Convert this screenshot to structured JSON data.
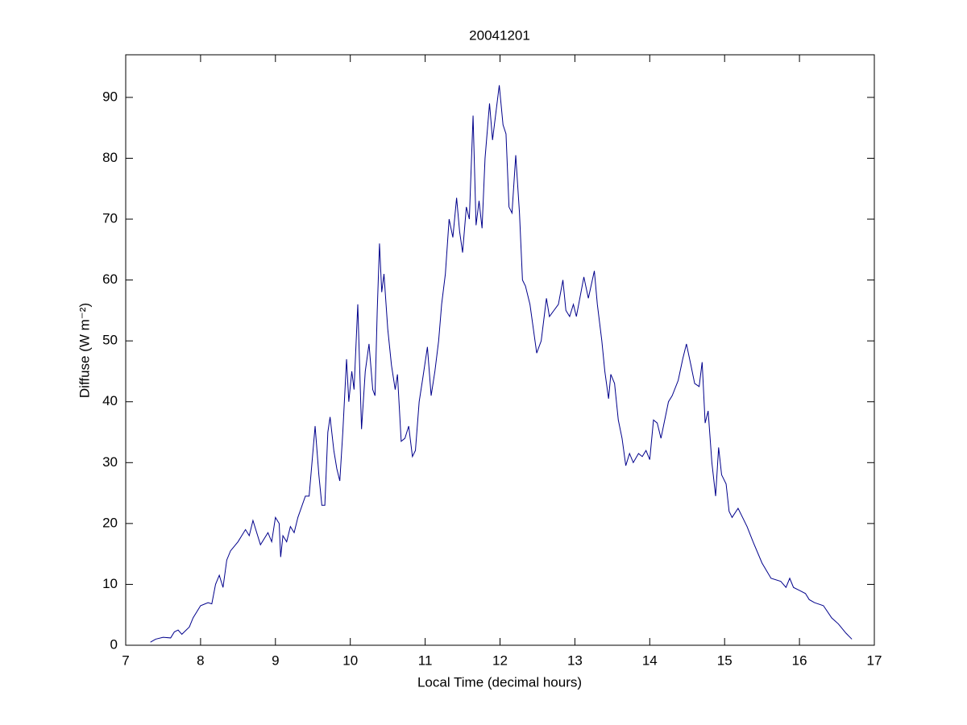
{
  "chart_data": {
    "type": "line",
    "title": "20041201",
    "xlabel": "Local Time (decimal hours)",
    "ylabel": "Diffuse (W m⁻²)",
    "xlim": [
      7,
      17
    ],
    "xticks": [
      7,
      8,
      9,
      10,
      11,
      12,
      13,
      14,
      15,
      16,
      17
    ],
    "ylim": [
      0,
      97
    ],
    "yticks": [
      0,
      10,
      20,
      30,
      40,
      50,
      60,
      70,
      80,
      90
    ],
    "grid": false,
    "series": [
      {
        "name": "Diffuse",
        "color": "#00008b",
        "x": [
          7.33,
          7.4,
          7.5,
          7.6,
          7.65,
          7.7,
          7.75,
          7.85,
          7.9,
          8.0,
          8.1,
          8.15,
          8.2,
          8.25,
          8.3,
          8.35,
          8.4,
          8.5,
          8.6,
          8.65,
          8.7,
          8.8,
          8.9,
          8.95,
          9.0,
          9.05,
          9.07,
          9.1,
          9.15,
          9.2,
          9.25,
          9.3,
          9.4,
          9.45,
          9.53,
          9.58,
          9.62,
          9.66,
          9.7,
          9.73,
          9.78,
          9.82,
          9.86,
          9.9,
          9.95,
          9.98,
          10.02,
          10.05,
          10.1,
          10.15,
          10.2,
          10.25,
          10.3,
          10.33,
          10.36,
          10.39,
          10.42,
          10.45,
          10.5,
          10.55,
          10.6,
          10.63,
          10.68,
          10.73,
          10.78,
          10.83,
          10.87,
          10.92,
          10.97,
          11.03,
          11.08,
          11.13,
          11.18,
          11.22,
          11.27,
          11.32,
          11.37,
          11.42,
          11.46,
          11.5,
          11.55,
          11.59,
          11.64,
          11.68,
          11.72,
          11.76,
          11.8,
          11.86,
          11.9,
          11.99,
          12.04,
          12.08,
          12.12,
          12.16,
          12.21,
          12.26,
          12.3,
          12.34,
          12.4,
          12.49,
          12.55,
          12.62,
          12.66,
          12.72,
          12.78,
          12.84,
          12.88,
          12.93,
          12.98,
          13.02,
          13.12,
          13.18,
          13.26,
          13.3,
          13.36,
          13.4,
          13.45,
          13.48,
          13.53,
          13.58,
          13.63,
          13.68,
          13.73,
          13.78,
          13.85,
          13.9,
          13.95,
          14.0,
          14.05,
          14.1,
          14.15,
          14.2,
          14.25,
          14.3,
          14.38,
          14.44,
          14.49,
          14.55,
          14.6,
          14.66,
          14.7,
          14.74,
          14.78,
          14.83,
          14.88,
          14.92,
          14.96,
          15.02,
          15.06,
          15.1,
          15.18,
          15.24,
          15.3,
          15.38,
          15.5,
          15.62,
          15.75,
          15.82,
          15.87,
          15.92,
          16.0,
          16.08,
          16.13,
          16.2,
          16.32,
          16.43,
          16.52,
          16.62,
          16.7
        ],
        "values": [
          0.5,
          1,
          1.3,
          1.2,
          2.2,
          2.5,
          1.8,
          3,
          4.5,
          6.5,
          7,
          6.8,
          10,
          11.5,
          9.5,
          14,
          15.5,
          17,
          19,
          18,
          20.5,
          16.5,
          18.5,
          17,
          21,
          20,
          14.5,
          18,
          17,
          19.5,
          18.5,
          21,
          24.5,
          24.5,
          36,
          28,
          23,
          23,
          35,
          37.5,
          32,
          29,
          27,
          35,
          47,
          40,
          45,
          42,
          56,
          35.5,
          45,
          49.5,
          42,
          41,
          55,
          66,
          58,
          61,
          52,
          46,
          42,
          44.5,
          33.5,
          34,
          36,
          31,
          32,
          40,
          44,
          49,
          41,
          45,
          50,
          56,
          61,
          70,
          67,
          73.5,
          68,
          64.5,
          72,
          70,
          87,
          69,
          73,
          68.5,
          80,
          89,
          83,
          92,
          85.5,
          84,
          72,
          71,
          80.5,
          71,
          60,
          59,
          56,
          48,
          50,
          57,
          54,
          55,
          56,
          60,
          55,
          54,
          56,
          54,
          60.5,
          57,
          61.5,
          56,
          50,
          45,
          40.5,
          44.5,
          43,
          37,
          34,
          29.5,
          31.5,
          30,
          31.5,
          31,
          32,
          30.5,
          37,
          36.5,
          34,
          37,
          40,
          41,
          43.5,
          47,
          49.5,
          46,
          43,
          42.5,
          46.5,
          36.5,
          38.5,
          30,
          24.5,
          32.5,
          28,
          26.5,
          22,
          21,
          22.5,
          21,
          19.5,
          17,
          13.5,
          11,
          10.5,
          9.5,
          11,
          9.5,
          9,
          8.5,
          7.5,
          7,
          6.5,
          4.5,
          3.5,
          2,
          1
        ]
      }
    ]
  }
}
